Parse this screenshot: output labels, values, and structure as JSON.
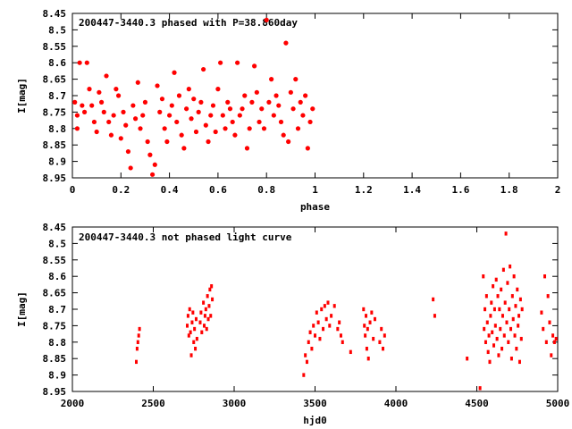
{
  "chart_data": [
    {
      "type": "scatter",
      "title": "200447-3440.3 phased with P=38.860day",
      "xlabel": "phase",
      "ylabel": "I[mag]",
      "xlim": [
        0,
        2
      ],
      "ylim": [
        8.95,
        8.45
      ],
      "y_inverted": true,
      "grid": false,
      "marker_color": "#ff0000",
      "xticks": [
        0,
        0.2,
        0.4,
        0.6,
        0.8,
        1,
        1.2,
        1.4,
        1.6,
        1.8,
        2
      ],
      "xtick_labels": [
        "0",
        "0.2",
        "0.4",
        "0.6",
        "0.8",
        "1",
        "1.2",
        "1.4",
        "1.6",
        "1.8",
        "2"
      ],
      "yticks": [
        8.45,
        8.5,
        8.55,
        8.6,
        8.65,
        8.7,
        8.75,
        8.8,
        8.85,
        8.9,
        8.95
      ],
      "ytick_labels": [
        "8.45",
        "8.5",
        "8.55",
        "8.6",
        "8.65",
        "8.7",
        "8.75",
        "8.8",
        "8.85",
        "8.9",
        "8.95"
      ],
      "series": [
        {
          "points": [
            [
              0.01,
              8.72
            ],
            [
              0.02,
              8.76
            ],
            [
              0.02,
              8.8
            ],
            [
              0.03,
              8.6
            ],
            [
              0.04,
              8.73
            ],
            [
              0.05,
              8.75
            ],
            [
              0.06,
              8.6
            ],
            [
              0.07,
              8.68
            ],
            [
              0.08,
              8.73
            ],
            [
              0.09,
              8.78
            ],
            [
              0.1,
              8.81
            ],
            [
              0.11,
              8.69
            ],
            [
              0.12,
              8.72
            ],
            [
              0.13,
              8.75
            ],
            [
              0.14,
              8.64
            ],
            [
              0.15,
              8.78
            ],
            [
              0.16,
              8.82
            ],
            [
              0.17,
              8.76
            ],
            [
              0.18,
              8.68
            ],
            [
              0.19,
              8.7
            ],
            [
              0.2,
              8.83
            ],
            [
              0.21,
              8.75
            ],
            [
              0.22,
              8.79
            ],
            [
              0.23,
              8.87
            ],
            [
              0.24,
              8.92
            ],
            [
              0.25,
              8.73
            ],
            [
              0.26,
              8.77
            ],
            [
              0.27,
              8.66
            ],
            [
              0.28,
              8.8
            ],
            [
              0.29,
              8.76
            ],
            [
              0.3,
              8.72
            ],
            [
              0.31,
              8.84
            ],
            [
              0.32,
              8.88
            ],
            [
              0.33,
              8.94
            ],
            [
              0.34,
              8.91
            ],
            [
              0.35,
              8.67
            ],
            [
              0.36,
              8.75
            ],
            [
              0.37,
              8.71
            ],
            [
              0.38,
              8.8
            ],
            [
              0.39,
              8.84
            ],
            [
              0.4,
              8.76
            ],
            [
              0.41,
              8.73
            ],
            [
              0.42,
              8.63
            ],
            [
              0.43,
              8.78
            ],
            [
              0.44,
              8.7
            ],
            [
              0.45,
              8.82
            ],
            [
              0.46,
              8.86
            ],
            [
              0.47,
              8.74
            ],
            [
              0.48,
              8.68
            ],
            [
              0.49,
              8.77
            ],
            [
              0.5,
              8.71
            ],
            [
              0.51,
              8.81
            ],
            [
              0.52,
              8.75
            ],
            [
              0.53,
              8.72
            ],
            [
              0.54,
              8.62
            ],
            [
              0.55,
              8.79
            ],
            [
              0.56,
              8.84
            ],
            [
              0.57,
              8.76
            ],
            [
              0.58,
              8.73
            ],
            [
              0.59,
              8.81
            ],
            [
              0.6,
              8.68
            ],
            [
              0.61,
              8.6
            ],
            [
              0.62,
              8.76
            ],
            [
              0.63,
              8.8
            ],
            [
              0.64,
              8.72
            ],
            [
              0.65,
              8.74
            ],
            [
              0.66,
              8.78
            ],
            [
              0.67,
              8.82
            ],
            [
              0.68,
              8.6
            ],
            [
              0.69,
              8.76
            ],
            [
              0.7,
              8.74
            ],
            [
              0.71,
              8.7
            ],
            [
              0.72,
              8.86
            ],
            [
              0.73,
              8.8
            ],
            [
              0.74,
              8.72
            ],
            [
              0.75,
              8.61
            ],
            [
              0.76,
              8.69
            ],
            [
              0.77,
              8.78
            ],
            [
              0.78,
              8.74
            ],
            [
              0.79,
              8.8
            ],
            [
              0.8,
              8.47
            ],
            [
              0.81,
              8.72
            ],
            [
              0.82,
              8.65
            ],
            [
              0.83,
              8.76
            ],
            [
              0.84,
              8.7
            ],
            [
              0.85,
              8.73
            ],
            [
              0.86,
              8.78
            ],
            [
              0.87,
              8.82
            ],
            [
              0.88,
              8.54
            ],
            [
              0.89,
              8.84
            ],
            [
              0.9,
              8.69
            ],
            [
              0.91,
              8.74
            ],
            [
              0.92,
              8.65
            ],
            [
              0.93,
              8.8
            ],
            [
              0.94,
              8.72
            ],
            [
              0.95,
              8.76
            ],
            [
              0.96,
              8.7
            ],
            [
              0.97,
              8.86
            ],
            [
              0.98,
              8.78
            ],
            [
              0.99,
              8.74
            ]
          ]
        }
      ]
    },
    {
      "type": "scatter",
      "title": "200447-3440.3 not phased light curve",
      "xlabel": "hjd0",
      "ylabel": "I[mag]",
      "xlim": [
        2000,
        5000
      ],
      "ylim": [
        8.95,
        8.45
      ],
      "y_inverted": true,
      "grid": false,
      "marker_color": "#ff0000",
      "xticks": [
        2000,
        2500,
        3000,
        3500,
        4000,
        4500,
        5000
      ],
      "xtick_labels": [
        "2000",
        "2500",
        "3000",
        "3500",
        "4000",
        "4500",
        "5000"
      ],
      "yticks": [
        8.45,
        8.5,
        8.55,
        8.6,
        8.65,
        8.7,
        8.75,
        8.8,
        8.85,
        8.9,
        8.95
      ],
      "ytick_labels": [
        "8.45",
        "8.5",
        "8.55",
        "8.6",
        "8.65",
        "8.7",
        "8.75",
        "8.8",
        "8.85",
        "8.9",
        "8.95"
      ],
      "series": [
        {
          "points": [
            [
              2395,
              8.86
            ],
            [
              2400,
              8.82
            ],
            [
              2405,
              8.8
            ],
            [
              2410,
              8.78
            ],
            [
              2415,
              8.76
            ],
            [
              2710,
              8.75
            ],
            [
              2715,
              8.72
            ],
            [
              2720,
              8.78
            ],
            [
              2725,
              8.7
            ],
            [
              2730,
              8.77
            ],
            [
              2735,
              8.84
            ],
            [
              2740,
              8.74
            ],
            [
              2745,
              8.71
            ],
            [
              2750,
              8.8
            ],
            [
              2755,
              8.76
            ],
            [
              2760,
              8.82
            ],
            [
              2765,
              8.73
            ],
            [
              2770,
              8.79
            ],
            [
              2790,
              8.74
            ],
            [
              2795,
              8.71
            ],
            [
              2800,
              8.77
            ],
            [
              2810,
              8.68
            ],
            [
              2815,
              8.75
            ],
            [
              2820,
              8.72
            ],
            [
              2825,
              8.7
            ],
            [
              2830,
              8.76
            ],
            [
              2835,
              8.66
            ],
            [
              2840,
              8.73
            ],
            [
              2845,
              8.69
            ],
            [
              2850,
              8.64
            ],
            [
              2855,
              8.72
            ],
            [
              2860,
              8.63
            ],
            [
              2865,
              8.67
            ],
            [
              3430,
              8.9
            ],
            [
              3440,
              8.84
            ],
            [
              3450,
              8.86
            ],
            [
              3460,
              8.8
            ],
            [
              3470,
              8.77
            ],
            [
              3480,
              8.82
            ],
            [
              3490,
              8.75
            ],
            [
              3500,
              8.78
            ],
            [
              3510,
              8.71
            ],
            [
              3520,
              8.74
            ],
            [
              3530,
              8.79
            ],
            [
              3540,
              8.7
            ],
            [
              3550,
              8.76
            ],
            [
              3560,
              8.69
            ],
            [
              3570,
              8.73
            ],
            [
              3580,
              8.68
            ],
            [
              3590,
              8.75
            ],
            [
              3600,
              8.72
            ],
            [
              3620,
              8.69
            ],
            [
              3640,
              8.76
            ],
            [
              3650,
              8.74
            ],
            [
              3660,
              8.78
            ],
            [
              3670,
              8.8
            ],
            [
              3720,
              8.83
            ],
            [
              3800,
              8.7
            ],
            [
              3805,
              8.75
            ],
            [
              3810,
              8.78
            ],
            [
              3815,
              8.72
            ],
            [
              3820,
              8.82
            ],
            [
              3825,
              8.76
            ],
            [
              3830,
              8.85
            ],
            [
              3840,
              8.74
            ],
            [
              3850,
              8.71
            ],
            [
              3860,
              8.79
            ],
            [
              3870,
              8.73
            ],
            [
              3900,
              8.8
            ],
            [
              3910,
              8.76
            ],
            [
              3920,
              8.82
            ],
            [
              3930,
              8.78
            ],
            [
              4230,
              8.67
            ],
            [
              4240,
              8.72
            ],
            [
              4440,
              8.85
            ],
            [
              4520,
              8.94
            ],
            [
              4540,
              8.6
            ],
            [
              4545,
              8.76
            ],
            [
              4550,
              8.7
            ],
            [
              4555,
              8.8
            ],
            [
              4560,
              8.66
            ],
            [
              4565,
              8.74
            ],
            [
              4570,
              8.83
            ],
            [
              4575,
              8.78
            ],
            [
              4580,
              8.86
            ],
            [
              4585,
              8.72
            ],
            [
              4590,
              8.68
            ],
            [
              4595,
              8.77
            ],
            [
              4600,
              8.63
            ],
            [
              4605,
              8.81
            ],
            [
              4610,
              8.7
            ],
            [
              4615,
              8.75
            ],
            [
              4620,
              8.61
            ],
            [
              4625,
              8.79
            ],
            [
              4630,
              8.66
            ],
            [
              4635,
              8.84
            ],
            [
              4640,
              8.7
            ],
            [
              4645,
              8.76
            ],
            [
              4650,
              8.64
            ],
            [
              4655,
              8.82
            ],
            [
              4660,
              8.72
            ],
            [
              4665,
              8.58
            ],
            [
              4670,
              8.78
            ],
            [
              4675,
              8.68
            ],
            [
              4680,
              8.47
            ],
            [
              4685,
              8.74
            ],
            [
              4690,
              8.62
            ],
            [
              4695,
              8.8
            ],
            [
              4700,
              8.7
            ],
            [
              4705,
              8.57
            ],
            [
              4710,
              8.76
            ],
            [
              4715,
              8.85
            ],
            [
              4720,
              8.66
            ],
            [
              4725,
              8.73
            ],
            [
              4730,
              8.6
            ],
            [
              4735,
              8.78
            ],
            [
              4740,
              8.69
            ],
            [
              4745,
              8.82
            ],
            [
              4750,
              8.64
            ],
            [
              4755,
              8.75
            ],
            [
              4760,
              8.72
            ],
            [
              4765,
              8.86
            ],
            [
              4770,
              8.67
            ],
            [
              4775,
              8.79
            ],
            [
              4780,
              8.7
            ],
            [
              4900,
              8.71
            ],
            [
              4910,
              8.76
            ],
            [
              4920,
              8.6
            ],
            [
              4930,
              8.8
            ],
            [
              4940,
              8.66
            ],
            [
              4950,
              8.74
            ],
            [
              4960,
              8.84
            ],
            [
              4970,
              8.78
            ],
            [
              4980,
              8.8
            ],
            [
              4990,
              8.79
            ]
          ]
        }
      ]
    }
  ]
}
